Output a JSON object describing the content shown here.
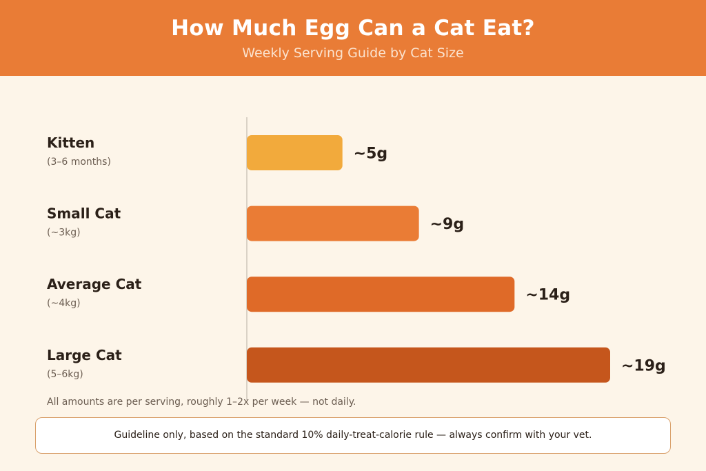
{
  "header": {
    "title": "How Much Egg Can a Cat Eat?",
    "subtitle": "Weekly Serving Guide by Cat Size"
  },
  "chart_data": {
    "type": "bar",
    "orientation": "horizontal",
    "categories": [
      "Kitten",
      "Small Cat",
      "Average Cat",
      "Large Cat"
    ],
    "sublabels": [
      "(3–6 months)",
      "(~3kg)",
      "(~4kg)",
      "(5–6kg)"
    ],
    "values": [
      5,
      9,
      14,
      19
    ],
    "value_labels": [
      "~5g",
      "~9g",
      "~14g",
      "~19g"
    ],
    "unit": "g",
    "colors": [
      "#f2aa3c",
      "#ea7c35",
      "#df6a28",
      "#c5561c"
    ],
    "title": "",
    "xlabel": "",
    "ylabel": "",
    "xlim": [
      0,
      19
    ],
    "grid": false,
    "legend": "none"
  },
  "footnote": "All amounts are per serving, roughly 1–2x per week — not daily.",
  "disclaimer": "Guideline only, based on the standard 10% daily-treat-calorie rule — always confirm with your vet."
}
